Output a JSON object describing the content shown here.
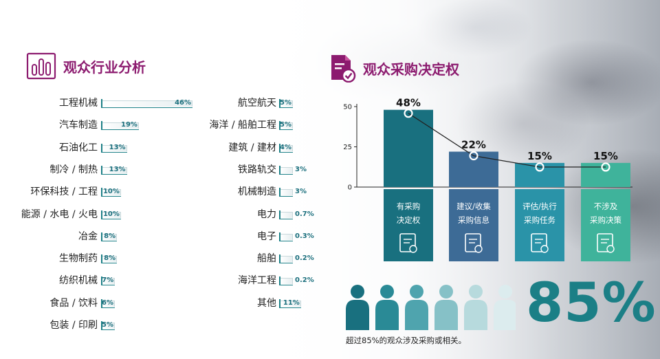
{
  "industry_section": {
    "title": "观众行业分析",
    "items": [
      {
        "label": "工程机械",
        "value": "46%",
        "pct": 46
      },
      {
        "label": "汽车制造",
        "value": "19%",
        "pct": 19
      },
      {
        "label": "石油化工",
        "value": "13%",
        "pct": 13
      },
      {
        "label": "制冷 / 制热",
        "value": "13%",
        "pct": 13
      },
      {
        "label": "环保科技 / 工程",
        "value": "10%",
        "pct": 10
      },
      {
        "label": "能源 / 水电 / 火电",
        "value": "10%",
        "pct": 10
      },
      {
        "label": "冶金",
        "value": "8%",
        "pct": 8
      },
      {
        "label": "生物制药",
        "value": "8%",
        "pct": 8
      },
      {
        "label": "纺织机械",
        "value": "7%",
        "pct": 7
      },
      {
        "label": "食品 / 饮料",
        "value": "6%",
        "pct": 6
      },
      {
        "label": "包装 / 印刷",
        "value": "5%",
        "pct": 5
      },
      {
        "label": "航空航天",
        "value": "5%",
        "pct": 5
      },
      {
        "label": "海洋 / 船舶工程",
        "value": "5%",
        "pct": 5
      },
      {
        "label": "建筑 / 建材",
        "value": "4%",
        "pct": 4
      },
      {
        "label": "铁路轨交",
        "value": "3%",
        "pct": 3
      },
      {
        "label": "机械制造",
        "value": "3%",
        "pct": 3
      },
      {
        "label": "电力",
        "value": "0.7%",
        "pct": 0.7
      },
      {
        "label": "电子",
        "value": "0.3%",
        "pct": 0.3
      },
      {
        "label": "船舶",
        "value": "0.2%",
        "pct": 0.2
      },
      {
        "label": "海洋工程",
        "value": "0.2%",
        "pct": 0.2
      },
      {
        "label": "其他",
        "value": "11%",
        "pct": 11
      }
    ]
  },
  "decision_section": {
    "title": "观众采购决定权"
  },
  "chart_data": [
    {
      "type": "bar",
      "title": "观众行业分析",
      "categories": [
        "工程机械",
        "汽车制造",
        "石油化工",
        "制冷 / 制热",
        "环保科技 / 工程",
        "能源 / 水电 / 火电",
        "冶金",
        "生物制药",
        "纺织机械",
        "食品 / 饮料",
        "包装 / 印刷",
        "航空航天",
        "海洋 / 船舶工程",
        "建筑 / 建材",
        "铁路轨交",
        "机械制造",
        "电力",
        "电子",
        "船舶",
        "海洋工程",
        "其他"
      ],
      "values": [
        46,
        19,
        13,
        13,
        10,
        10,
        8,
        8,
        7,
        6,
        5,
        5,
        5,
        4,
        3,
        3,
        0.7,
        0.3,
        0.2,
        0.2,
        11
      ],
      "orientation": "horizontal"
    },
    {
      "type": "bar",
      "title": "观众采购决定权",
      "categories": [
        "有采购\n决定权",
        "建议/收集\n采购信息",
        "评估/执行\n采购任务",
        "不涉及\n采购决策"
      ],
      "values": [
        48,
        22,
        15,
        15
      ],
      "value_labels": [
        "48%",
        "22%",
        "15%",
        "15%"
      ],
      "yticks": [
        0,
        25,
        50
      ],
      "ylim": [
        0,
        50
      ],
      "overlay_line": true,
      "colors": [
        "#19707f",
        "#3d6b96",
        "#2a93a8",
        "#3fb39b"
      ]
    }
  ],
  "decision_columns": [
    {
      "line1": "有采购",
      "line2": "决定权",
      "icon": "checklist-icon",
      "label": "48%"
    },
    {
      "line1": "建议/收集",
      "line2": "采购信息",
      "icon": "edit-document-icon",
      "label": "22%"
    },
    {
      "line1": "评估/执行",
      "line2": "采购任务",
      "icon": "warning-document-icon",
      "label": "15%"
    },
    {
      "line1": "不涉及",
      "line2": "采购决策",
      "icon": "gear-box-icon",
      "label": "15%"
    }
  ],
  "summary": {
    "big_percent": "85%",
    "caption": "超过85%的观众涉及采购或相关。",
    "people_colors": [
      "#19707f",
      "#2a8a96",
      "#4fa4ae",
      "#86c1c7",
      "#b7dadd",
      "#dcecee"
    ]
  }
}
